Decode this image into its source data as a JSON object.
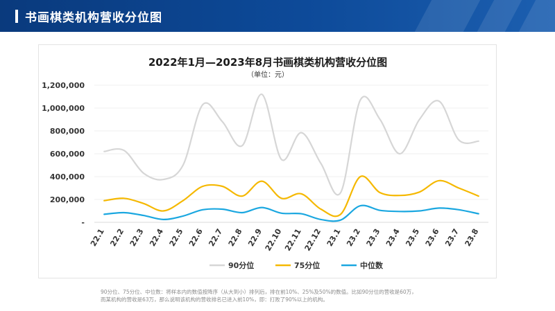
{
  "header": {
    "title": "书画棋类机构营收分位图"
  },
  "colors": {
    "header_bg": "#0a3a7d",
    "p90": "#d6d6d6",
    "p75": "#f5b800",
    "median": "#1aa7e0"
  },
  "chart_data": {
    "type": "line",
    "title": "2022年1月—2023年8月书画棋类机构营收分位图",
    "subtitle": "（单位：元）",
    "categories": [
      "22.1",
      "22.2",
      "22.3",
      "22.4",
      "22.5",
      "22.6",
      "22.7",
      "22.8",
      "22.9",
      "22.10",
      "22.11",
      "22.12",
      "23.1",
      "23.2",
      "23.3",
      "23.4",
      "23.5",
      "23.6",
      "23.7",
      "23.8"
    ],
    "y_ticks": [
      {
        "value": 0,
        "label": "-"
      },
      {
        "value": 200000,
        "label": "200,000"
      },
      {
        "value": 400000,
        "label": "400,000"
      },
      {
        "value": 600000,
        "label": "600,000"
      },
      {
        "value": 800000,
        "label": "800,000"
      },
      {
        "value": 1000000,
        "label": "1,000,000"
      },
      {
        "value": 1200000,
        "label": "1,200,000"
      }
    ],
    "ylim": [
      0,
      1200000
    ],
    "series": [
      {
        "name": "90分位",
        "color": "#d6d6d6",
        "values": [
          620000,
          630000,
          430000,
          375000,
          500000,
          1030000,
          880000,
          670000,
          1120000,
          550000,
          785000,
          515000,
          260000,
          1070000,
          900000,
          600000,
          900000,
          1060000,
          720000,
          710000
        ]
      },
      {
        "name": "75分位",
        "color": "#f5b800",
        "values": [
          190000,
          210000,
          165000,
          100000,
          190000,
          315000,
          315000,
          230000,
          360000,
          210000,
          250000,
          115000,
          70000,
          400000,
          260000,
          235000,
          265000,
          365000,
          300000,
          230000
        ]
      },
      {
        "name": "中位数",
        "color": "#1aa7e0",
        "values": [
          70000,
          85000,
          60000,
          25000,
          55000,
          110000,
          115000,
          85000,
          130000,
          80000,
          75000,
          25000,
          20000,
          145000,
          105000,
          95000,
          100000,
          125000,
          110000,
          75000
        ]
      }
    ],
    "legend_position": "bottom"
  },
  "footnote": {
    "line1": "90分位、75分位、中位数：将样本内的数值按降序（从大到小）排列后，排在前10%、25%及50%的数值。比如90分位的营收是60万，",
    "line2": "而某机构的营收是63万，那么说明该机构的营收排名已进入前10%，即：打败了90%以上的机构。"
  }
}
